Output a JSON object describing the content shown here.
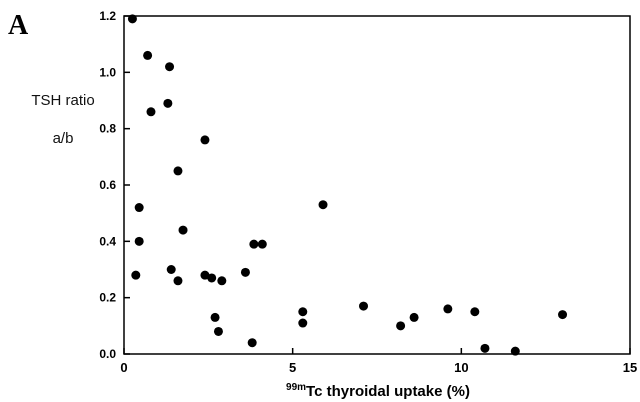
{
  "panel_label": "A",
  "chart_data": {
    "type": "scatter",
    "xlabel_sup": "99m",
    "xlabel": "Tc thyroidal uptake (%)",
    "ylabel_line1": "TSH ratio",
    "ylabel_line2": "a/b",
    "xlim": [
      0,
      15
    ],
    "ylim": [
      0,
      1.2
    ],
    "x_ticks": [
      "0",
      "5",
      "10",
      "15"
    ],
    "y_ticks": [
      "0.0",
      "0.2",
      "0.4",
      "0.6",
      "0.8",
      "1.0",
      "1.2"
    ],
    "grid": false,
    "marker_color": "#000000",
    "points": [
      {
        "x": 0.25,
        "y": 1.19
      },
      {
        "x": 0.7,
        "y": 1.06
      },
      {
        "x": 1.35,
        "y": 1.02
      },
      {
        "x": 1.3,
        "y": 0.89
      },
      {
        "x": 0.8,
        "y": 0.86
      },
      {
        "x": 2.4,
        "y": 0.76
      },
      {
        "x": 1.6,
        "y": 0.65
      },
      {
        "x": 0.45,
        "y": 0.52
      },
      {
        "x": 5.9,
        "y": 0.53
      },
      {
        "x": 1.75,
        "y": 0.44
      },
      {
        "x": 0.45,
        "y": 0.4
      },
      {
        "x": 3.85,
        "y": 0.39
      },
      {
        "x": 4.1,
        "y": 0.39
      },
      {
        "x": 3.6,
        "y": 0.29
      },
      {
        "x": 1.4,
        "y": 0.3
      },
      {
        "x": 2.4,
        "y": 0.28
      },
      {
        "x": 2.6,
        "y": 0.27
      },
      {
        "x": 0.35,
        "y": 0.28
      },
      {
        "x": 1.6,
        "y": 0.26
      },
      {
        "x": 2.9,
        "y": 0.26
      },
      {
        "x": 7.1,
        "y": 0.17
      },
      {
        "x": 9.6,
        "y": 0.16
      },
      {
        "x": 10.4,
        "y": 0.15
      },
      {
        "x": 13.0,
        "y": 0.14
      },
      {
        "x": 5.3,
        "y": 0.15
      },
      {
        "x": 2.7,
        "y": 0.13
      },
      {
        "x": 8.6,
        "y": 0.13
      },
      {
        "x": 5.3,
        "y": 0.11
      },
      {
        "x": 8.2,
        "y": 0.1
      },
      {
        "x": 2.8,
        "y": 0.08
      },
      {
        "x": 3.8,
        "y": 0.04
      },
      {
        "x": 10.7,
        "y": 0.02
      },
      {
        "x": 11.6,
        "y": 0.01
      }
    ]
  }
}
